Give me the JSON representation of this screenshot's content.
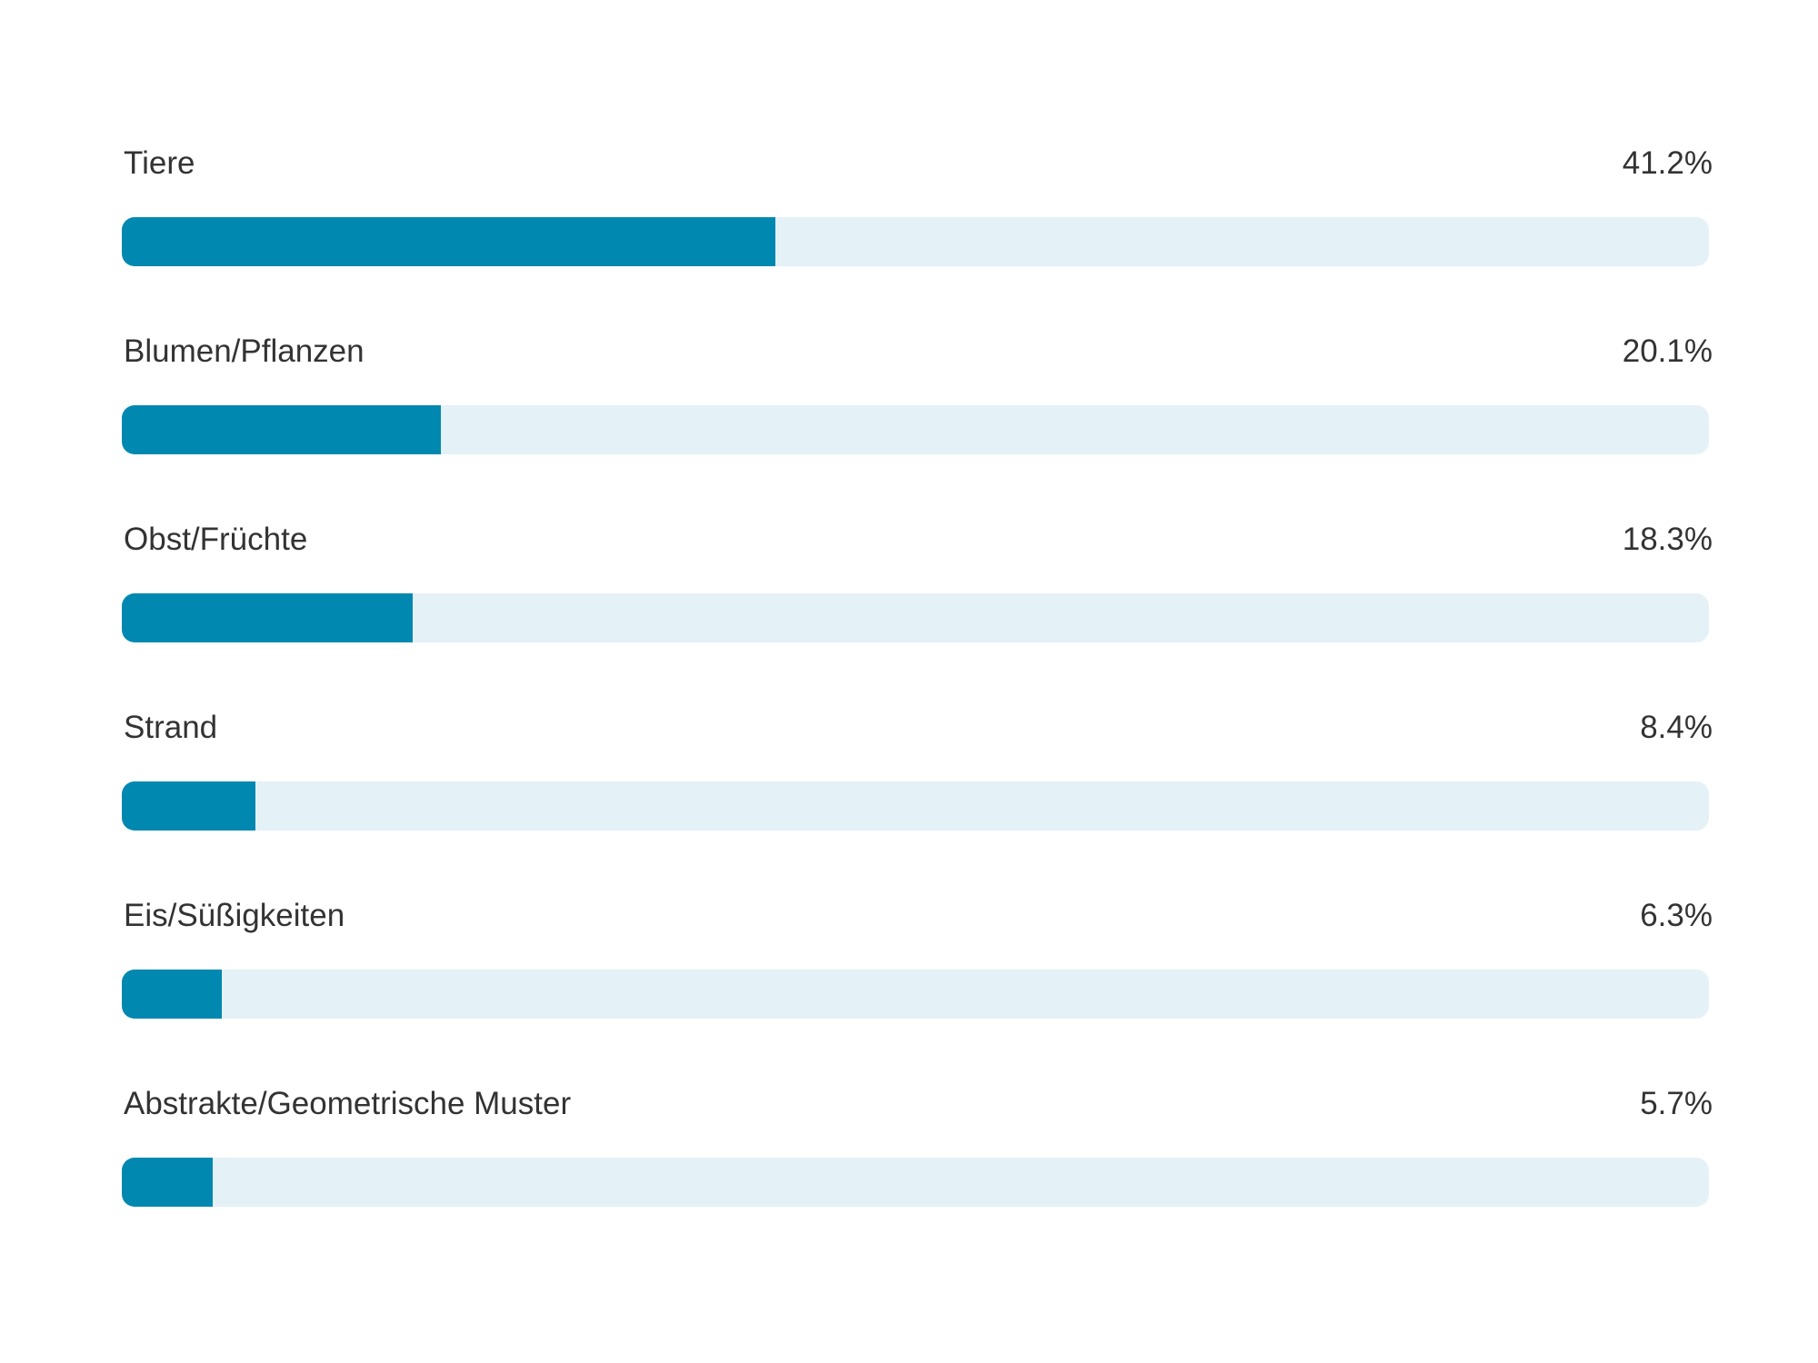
{
  "colors": {
    "bar_fill": "#0088b0",
    "bar_track": "#e4f1f7"
  },
  "chart_data": {
    "type": "bar",
    "orientation": "horizontal",
    "categories": [
      "Tiere",
      "Blumen/Pflanzen",
      "Obst/Früchte",
      "Strand",
      "Eis/Süßigkeiten",
      "Abstrakte/Geometrische Muster"
    ],
    "values": [
      41.2,
      20.1,
      18.3,
      8.4,
      6.3,
      5.7
    ],
    "value_labels": [
      "41.2%",
      "20.1%",
      "18.3%",
      "8.4%",
      "6.3%",
      "5.7%"
    ],
    "unit": "%",
    "xlim": [
      0,
      100
    ],
    "grid": false,
    "legend": "none"
  }
}
